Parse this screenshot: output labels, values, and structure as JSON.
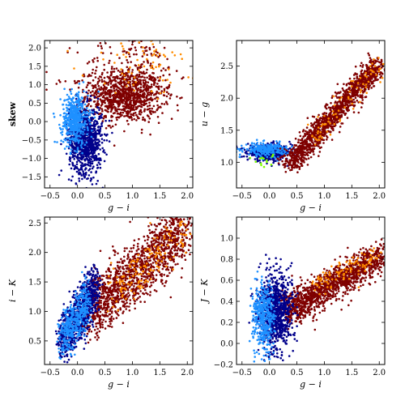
{
  "colors": {
    "dark_red": "#7f0000",
    "orange": "#ff8c00",
    "dark_blue": "#00008b",
    "light_blue": "#1e90ff",
    "green": "#7fff00",
    "frame": "#000000",
    "background": "#ffffff"
  },
  "chart_data": [
    {
      "type": "scatter",
      "id": "skew",
      "xlabel": "g − i",
      "ylabel": "skew",
      "xlim": [
        -0.6,
        2.1
      ],
      "ylim": [
        -1.8,
        2.2
      ],
      "xticks": [
        -0.5,
        0.0,
        0.5,
        1.0,
        1.5,
        2.0
      ],
      "yticks": [
        -1.5,
        -1.0,
        -0.5,
        0.0,
        0.5,
        1.0,
        1.5,
        2.0
      ],
      "xticklabels": [
        "−0.5",
        "0.0",
        "0.5",
        "1.0",
        "1.5",
        "2.0"
      ],
      "yticklabels": [
        "−1.5",
        "−1.0",
        "−0.5",
        "0.0",
        "0.5",
        "1.0",
        "1.5",
        "2.0"
      ],
      "clusters": [
        {
          "color": "dark_red",
          "count": 900,
          "cx": 0.85,
          "cy": 0.7,
          "sx": 0.35,
          "sy": 0.35
        },
        {
          "color": "dark_red",
          "count": 250,
          "cx": 1.0,
          "cy": 1.2,
          "sx": 0.5,
          "sy": 0.6
        },
        {
          "color": "dark_blue",
          "count": 900,
          "cx": 0.15,
          "cy": -0.5,
          "sx": 0.15,
          "sy": 0.45
        },
        {
          "color": "light_blue",
          "count": 500,
          "cx": -0.05,
          "cy": 0.05,
          "sx": 0.12,
          "sy": 0.35
        },
        {
          "color": "orange",
          "count": 80,
          "cx": 1.2,
          "cy": 1.6,
          "sx": 0.5,
          "sy": 0.4
        }
      ]
    },
    {
      "type": "scatter",
      "id": "u-g",
      "xlabel": "g − i",
      "ylabel": "u − g",
      "xlim": [
        -0.6,
        2.1
      ],
      "ylim": [
        0.6,
        2.9
      ],
      "xticks": [
        -0.5,
        0.0,
        0.5,
        1.0,
        1.5,
        2.0
      ],
      "yticks": [
        1.0,
        1.5,
        2.0,
        2.5
      ],
      "xticklabels": [
        "−0.5",
        "0.0",
        "0.5",
        "1.0",
        "1.5",
        "2.0"
      ],
      "yticklabels": [
        "1.0",
        "1.5",
        "2.0",
        "2.5"
      ],
      "clusters": [
        {
          "color": "dark_blue",
          "count": 500,
          "cx": 0.0,
          "cy": 1.15,
          "sx": 0.2,
          "sy": 0.06
        },
        {
          "color": "light_blue",
          "count": 250,
          "cx": -0.05,
          "cy": 1.2,
          "sx": 0.2,
          "sy": 0.05
        },
        {
          "color": "green",
          "count": 15,
          "cx": -0.1,
          "cy": 1.05,
          "sx": 0.1,
          "sy": 0.05
        },
        {
          "color": "dark_red",
          "count": 1400,
          "trend": true,
          "x0": 0.35,
          "x1": 2.0,
          "y0": 0.95,
          "y1": 2.55,
          "sx": 0.25,
          "sy": 0.08
        },
        {
          "color": "orange",
          "count": 80,
          "trend": true,
          "x0": 0.8,
          "x1": 2.0,
          "y0": 1.4,
          "y1": 2.5,
          "sx": 0.2,
          "sy": 0.08
        }
      ]
    },
    {
      "type": "scatter",
      "id": "i-K",
      "xlabel": "g − i",
      "ylabel": "i − K",
      "xlim": [
        -0.6,
        2.1
      ],
      "ylim": [
        0.1,
        2.6
      ],
      "xticks": [
        -0.5,
        0.0,
        0.5,
        1.0,
        1.5,
        2.0
      ],
      "yticks": [
        0.5,
        1.0,
        1.5,
        2.0,
        2.5
      ],
      "xticklabels": [
        "−0.5",
        "0.0",
        "0.5",
        "1.0",
        "1.5",
        "2.0"
      ],
      "yticklabels": [
        "0.5",
        "1.0",
        "1.5",
        "2.0",
        "2.5"
      ],
      "clusters": [
        {
          "color": "dark_red",
          "count": 1400,
          "trend": true,
          "x0": 0.2,
          "x1": 2.0,
          "y0": 1.0,
          "y1": 2.4,
          "sx": 0.25,
          "sy": 0.25
        },
        {
          "color": "dark_blue",
          "count": 900,
          "trend": true,
          "x0": -0.3,
          "x1": 0.35,
          "y0": 0.5,
          "y1": 1.4,
          "sx": 0.12,
          "sy": 0.22
        },
        {
          "color": "light_blue",
          "count": 400,
          "trend": true,
          "x0": -0.3,
          "x1": 0.2,
          "y0": 0.5,
          "y1": 1.2,
          "sx": 0.1,
          "sy": 0.2
        },
        {
          "color": "orange",
          "count": 150,
          "trend": true,
          "x0": 0.6,
          "x1": 2.0,
          "y0": 1.3,
          "y1": 2.4,
          "sx": 0.2,
          "sy": 0.2
        }
      ]
    },
    {
      "type": "scatter",
      "id": "J-K",
      "xlabel": "g − i",
      "ylabel": "J − K",
      "xlim": [
        -0.6,
        2.1
      ],
      "ylim": [
        -0.2,
        1.2
      ],
      "xticks": [
        -0.5,
        0.0,
        0.5,
        1.0,
        1.5,
        2.0
      ],
      "yticks": [
        -0.2,
        0.0,
        0.2,
        0.4,
        0.6,
        0.8,
        1.0
      ],
      "xticklabels": [
        "−0.5",
        "0.0",
        "0.5",
        "1.0",
        "1.5",
        "2.0"
      ],
      "yticklabels": [
        "−0.2",
        "0.0",
        "0.2",
        "0.4",
        "0.6",
        "0.8",
        "1.0"
      ],
      "clusters": [
        {
          "color": "dark_red",
          "count": 1300,
          "trend": true,
          "x0": 0.3,
          "x1": 2.0,
          "y0": 0.3,
          "y1": 0.82,
          "sx": 0.25,
          "sy": 0.08
        },
        {
          "color": "dark_blue",
          "count": 900,
          "cx": 0.1,
          "cy": 0.3,
          "sx": 0.15,
          "sy": 0.18
        },
        {
          "color": "light_blue",
          "count": 400,
          "cx": -0.1,
          "cy": 0.25,
          "sx": 0.1,
          "sy": 0.16
        },
        {
          "color": "orange",
          "count": 100,
          "trend": true,
          "x0": 0.8,
          "x1": 2.0,
          "y0": 0.55,
          "y1": 0.85,
          "sx": 0.2,
          "sy": 0.05
        }
      ]
    }
  ]
}
